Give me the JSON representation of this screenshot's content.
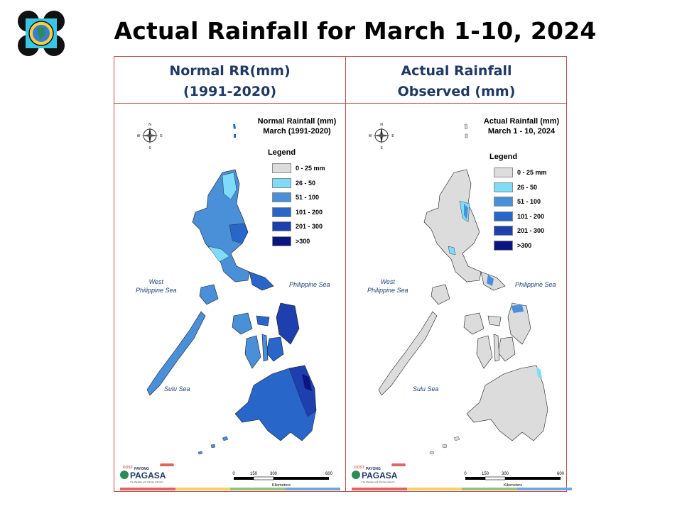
{
  "slide": {
    "title": "Actual Rainfall for March 1-10, 2024"
  },
  "panels": {
    "left_header": [
      "Normal RR(mm)",
      "(1991-2020)"
    ],
    "right_header": [
      "Actual Rainfall",
      "Observed (mm)"
    ]
  },
  "maps": {
    "normal": {
      "title_line1": "Normal Rainfall (mm)",
      "title_line2": "March (1991-2020)"
    },
    "actual": {
      "title_line1": "Actual Rainfall (mm)",
      "title_line2": "March 1 - 10, 2024"
    },
    "legend_title": "Legend",
    "legend": [
      {
        "label": "0 - 25 mm",
        "color": "#dcdcdc"
      },
      {
        "label": "26 - 50",
        "color": "#7fdcf8"
      },
      {
        "label": "51 - 100",
        "color": "#4a90d9"
      },
      {
        "label": "101 - 200",
        "color": "#2867c9"
      },
      {
        "label": "201 - 300",
        "color": "#1e3fae"
      },
      {
        "label": ">300",
        "color": "#0b1580"
      }
    ],
    "seas": {
      "west_line1": "West",
      "west_line2": "Philippine Sea",
      "east": "Philippine Sea",
      "sulu": "Sulu Sea"
    },
    "compass": {
      "n": "N",
      "s": "S",
      "e": "E",
      "w": "W"
    },
    "scale": {
      "ticks": [
        "0",
        "150",
        "300",
        "600"
      ],
      "unit": "Kilometers"
    },
    "brand": {
      "top": "DOST",
      "mid": "PAYONG",
      "name": "PAGASA",
      "tagline": "The Weather and Climate Authority"
    },
    "strip_colors": [
      "#e06666",
      "#f1d36b",
      "#93c47d",
      "#6fa8dc"
    ]
  }
}
